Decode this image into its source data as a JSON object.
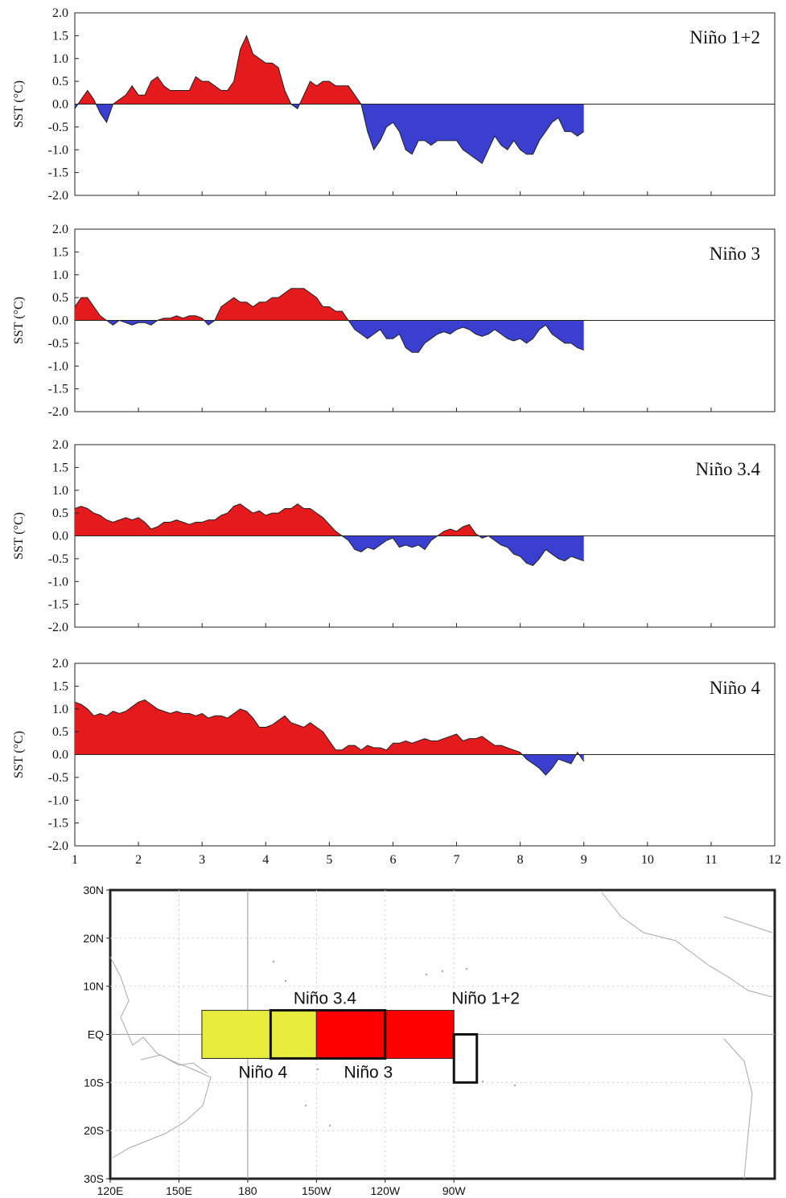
{
  "chart_data": [
    {
      "type": "area",
      "title": "Niño 1+2",
      "ylabel": "SST (°C)",
      "xlim": [
        1,
        12
      ],
      "ylim": [
        -2.0,
        2.0
      ],
      "yticks": [
        "2.0",
        "1.5",
        "1.0",
        "0.5",
        "0.0",
        "-0.5",
        "-1.0",
        "-1.5",
        "-2.0"
      ],
      "positive_color": "#e41a1c",
      "negative_color": "#3a3fd0",
      "x": [
        1.0,
        1.1,
        1.2,
        1.3,
        1.4,
        1.5,
        1.6,
        1.7,
        1.8,
        1.9,
        2.0,
        2.1,
        2.2,
        2.3,
        2.4,
        2.5,
        2.6,
        2.7,
        2.8,
        2.9,
        3.0,
        3.1,
        3.2,
        3.3,
        3.4,
        3.5,
        3.6,
        3.7,
        3.8,
        3.9,
        4.0,
        4.1,
        4.2,
        4.3,
        4.4,
        4.5,
        4.6,
        4.7,
        4.8,
        4.9,
        5.0,
        5.1,
        5.2,
        5.3,
        5.4,
        5.5,
        5.6,
        5.7,
        5.8,
        5.9,
        6.0,
        6.1,
        6.2,
        6.3,
        6.4,
        6.5,
        6.6,
        6.7,
        6.8,
        6.9,
        7.0,
        7.1,
        7.2,
        7.3,
        7.4,
        7.5,
        7.6,
        7.7,
        7.8,
        7.9,
        8.0,
        8.1,
        8.2,
        8.3,
        8.4,
        8.5,
        8.6,
        8.7,
        8.8,
        8.9,
        9.0
      ],
      "values": [
        -0.1,
        0.1,
        0.3,
        0.1,
        -0.2,
        -0.4,
        0.0,
        0.1,
        0.2,
        0.4,
        0.2,
        0.2,
        0.5,
        0.6,
        0.4,
        0.3,
        0.3,
        0.3,
        0.3,
        0.6,
        0.5,
        0.5,
        0.4,
        0.3,
        0.3,
        0.5,
        1.2,
        1.5,
        1.1,
        1.0,
        0.9,
        0.9,
        0.8,
        0.3,
        0.0,
        -0.1,
        0.2,
        0.5,
        0.4,
        0.5,
        0.5,
        0.4,
        0.4,
        0.4,
        0.2,
        0.0,
        -0.6,
        -1.0,
        -0.8,
        -0.5,
        -0.4,
        -0.6,
        -1.0,
        -1.1,
        -0.8,
        -0.8,
        -0.9,
        -0.8,
        -0.8,
        -0.8,
        -0.8,
        -1.0,
        -1.1,
        -1.2,
        -1.3,
        -1.0,
        -0.7,
        -0.9,
        -1.0,
        -0.8,
        -1.0,
        -1.1,
        -1.1,
        -0.8,
        -0.6,
        -0.4,
        -0.3,
        -0.6,
        -0.6,
        -0.7,
        -0.6
      ]
    },
    {
      "type": "area",
      "title": "Niño 3",
      "ylabel": "SST (°C)",
      "xlim": [
        1,
        12
      ],
      "ylim": [
        -2.0,
        2.0
      ],
      "yticks": [
        "2.0",
        "1.5",
        "1.0",
        "0.5",
        "0.0",
        "-0.5",
        "-1.0",
        "-1.5",
        "-2.0"
      ],
      "positive_color": "#e41a1c",
      "negative_color": "#3a3fd0",
      "x": [
        1.0,
        1.1,
        1.2,
        1.3,
        1.4,
        1.5,
        1.6,
        1.7,
        1.8,
        1.9,
        2.0,
        2.1,
        2.2,
        2.3,
        2.4,
        2.5,
        2.6,
        2.7,
        2.8,
        2.9,
        3.0,
        3.1,
        3.2,
        3.3,
        3.4,
        3.5,
        3.6,
        3.7,
        3.8,
        3.9,
        4.0,
        4.1,
        4.2,
        4.3,
        4.4,
        4.5,
        4.6,
        4.7,
        4.8,
        4.9,
        5.0,
        5.1,
        5.2,
        5.3,
        5.4,
        5.5,
        5.6,
        5.7,
        5.8,
        5.9,
        6.0,
        6.1,
        6.2,
        6.3,
        6.4,
        6.5,
        6.6,
        6.7,
        6.8,
        6.9,
        7.0,
        7.1,
        7.2,
        7.3,
        7.4,
        7.5,
        7.6,
        7.7,
        7.8,
        7.9,
        8.0,
        8.1,
        8.2,
        8.3,
        8.4,
        8.5,
        8.6,
        8.7,
        8.8,
        8.9,
        9.0
      ],
      "values": [
        0.3,
        0.5,
        0.5,
        0.3,
        0.1,
        0.0,
        -0.1,
        0.0,
        -0.05,
        -0.1,
        -0.05,
        -0.05,
        -0.1,
        0.0,
        0.05,
        0.05,
        0.1,
        0.05,
        0.1,
        0.1,
        0.05,
        -0.1,
        0.0,
        0.3,
        0.4,
        0.5,
        0.4,
        0.4,
        0.3,
        0.4,
        0.4,
        0.5,
        0.5,
        0.6,
        0.7,
        0.7,
        0.7,
        0.6,
        0.5,
        0.3,
        0.3,
        0.2,
        0.2,
        0.0,
        -0.2,
        -0.3,
        -0.4,
        -0.3,
        -0.2,
        -0.4,
        -0.4,
        -0.3,
        -0.6,
        -0.7,
        -0.7,
        -0.5,
        -0.4,
        -0.3,
        -0.25,
        -0.3,
        -0.2,
        -0.15,
        -0.2,
        -0.3,
        -0.35,
        -0.3,
        -0.2,
        -0.3,
        -0.4,
        -0.45,
        -0.4,
        -0.5,
        -0.4,
        -0.2,
        -0.1,
        -0.3,
        -0.4,
        -0.5,
        -0.5,
        -0.6,
        -0.65
      ]
    },
    {
      "type": "area",
      "title": "Niño 3.4",
      "ylabel": "SST (°C)",
      "xlim": [
        1,
        12
      ],
      "ylim": [
        -2.0,
        2.0
      ],
      "yticks": [
        "2.0",
        "1.5",
        "1.0",
        "0.5",
        "0.0",
        "-0.5",
        "-1.0",
        "-1.5",
        "-2.0"
      ],
      "positive_color": "#e41a1c",
      "negative_color": "#3a3fd0",
      "x": [
        1.0,
        1.1,
        1.2,
        1.3,
        1.4,
        1.5,
        1.6,
        1.7,
        1.8,
        1.9,
        2.0,
        2.1,
        2.2,
        2.3,
        2.4,
        2.5,
        2.6,
        2.7,
        2.8,
        2.9,
        3.0,
        3.1,
        3.2,
        3.3,
        3.4,
        3.5,
        3.6,
        3.7,
        3.8,
        3.9,
        4.0,
        4.1,
        4.2,
        4.3,
        4.4,
        4.5,
        4.6,
        4.7,
        4.8,
        4.9,
        5.0,
        5.1,
        5.2,
        5.3,
        5.4,
        5.5,
        5.6,
        5.7,
        5.8,
        5.9,
        6.0,
        6.1,
        6.2,
        6.3,
        6.4,
        6.5,
        6.6,
        6.7,
        6.8,
        6.9,
        7.0,
        7.1,
        7.2,
        7.3,
        7.4,
        7.5,
        7.6,
        7.7,
        7.8,
        7.9,
        8.0,
        8.1,
        8.2,
        8.3,
        8.4,
        8.5,
        8.6,
        8.7,
        8.8,
        8.9,
        9.0
      ],
      "values": [
        0.6,
        0.65,
        0.6,
        0.5,
        0.45,
        0.35,
        0.3,
        0.35,
        0.4,
        0.35,
        0.4,
        0.3,
        0.15,
        0.2,
        0.3,
        0.3,
        0.35,
        0.3,
        0.25,
        0.3,
        0.3,
        0.35,
        0.35,
        0.45,
        0.5,
        0.65,
        0.7,
        0.6,
        0.5,
        0.55,
        0.45,
        0.5,
        0.5,
        0.6,
        0.6,
        0.7,
        0.6,
        0.6,
        0.5,
        0.4,
        0.25,
        0.1,
        0.0,
        -0.1,
        -0.3,
        -0.35,
        -0.25,
        -0.3,
        -0.2,
        -0.1,
        -0.05,
        -0.25,
        -0.2,
        -0.25,
        -0.2,
        -0.3,
        -0.1,
        0.0,
        0.1,
        0.15,
        0.1,
        0.2,
        0.25,
        0.05,
        -0.05,
        0.0,
        -0.1,
        -0.2,
        -0.25,
        -0.4,
        -0.45,
        -0.6,
        -0.65,
        -0.5,
        -0.3,
        -0.4,
        -0.5,
        -0.55,
        -0.45,
        -0.5,
        -0.55
      ]
    },
    {
      "type": "area",
      "title": "Niño 4",
      "ylabel": "SST (°C)",
      "xlim": [
        1,
        12
      ],
      "ylim": [
        -2.0,
        2.0
      ],
      "yticks": [
        "2.0",
        "1.5",
        "1.0",
        "0.5",
        "0.0",
        "-0.5",
        "-1.0",
        "-1.5",
        "-2.0"
      ],
      "xticks": [
        "1",
        "2",
        "3",
        "4",
        "5",
        "6",
        "7",
        "8",
        "9",
        "10",
        "11",
        "12"
      ],
      "positive_color": "#e41a1c",
      "negative_color": "#3a3fd0",
      "x": [
        1.0,
        1.1,
        1.2,
        1.3,
        1.4,
        1.5,
        1.6,
        1.7,
        1.8,
        1.9,
        2.0,
        2.1,
        2.2,
        2.3,
        2.4,
        2.5,
        2.6,
        2.7,
        2.8,
        2.9,
        3.0,
        3.1,
        3.2,
        3.3,
        3.4,
        3.5,
        3.6,
        3.7,
        3.8,
        3.9,
        4.0,
        4.1,
        4.2,
        4.3,
        4.4,
        4.5,
        4.6,
        4.7,
        4.8,
        4.9,
        5.0,
        5.1,
        5.2,
        5.3,
        5.4,
        5.5,
        5.6,
        5.7,
        5.8,
        5.9,
        6.0,
        6.1,
        6.2,
        6.3,
        6.4,
        6.5,
        6.6,
        6.7,
        6.8,
        6.9,
        7.0,
        7.1,
        7.2,
        7.3,
        7.4,
        7.5,
        7.6,
        7.7,
        7.8,
        7.9,
        8.0,
        8.1,
        8.2,
        8.3,
        8.4,
        8.5,
        8.6,
        8.7,
        8.8,
        8.9,
        9.0
      ],
      "values": [
        1.15,
        1.1,
        1.0,
        0.85,
        0.9,
        0.85,
        0.95,
        0.9,
        0.95,
        1.05,
        1.15,
        1.2,
        1.1,
        1.0,
        0.95,
        0.9,
        0.95,
        0.9,
        0.9,
        0.85,
        0.9,
        0.8,
        0.85,
        0.85,
        0.8,
        0.9,
        1.0,
        0.95,
        0.8,
        0.6,
        0.6,
        0.65,
        0.75,
        0.85,
        0.7,
        0.65,
        0.6,
        0.7,
        0.6,
        0.5,
        0.3,
        0.1,
        0.1,
        0.2,
        0.2,
        0.1,
        0.2,
        0.15,
        0.15,
        0.1,
        0.25,
        0.25,
        0.3,
        0.25,
        0.3,
        0.35,
        0.3,
        0.3,
        0.35,
        0.4,
        0.45,
        0.3,
        0.35,
        0.35,
        0.4,
        0.3,
        0.2,
        0.2,
        0.15,
        0.1,
        0.05,
        -0.1,
        -0.2,
        -0.3,
        -0.45,
        -0.3,
        -0.1,
        -0.15,
        -0.2,
        0.05,
        -0.15
      ]
    }
  ],
  "map": {
    "lon_labels": [
      "120E",
      "150E",
      "180",
      "150W",
      "120W",
      "90W"
    ],
    "lat_labels": [
      "30N",
      "20N",
      "10N",
      "EQ",
      "10S",
      "20S",
      "30S"
    ],
    "regions": [
      {
        "name": "Niño 4",
        "color": "#e8ec3c"
      },
      {
        "name": "Niño 3",
        "color": "#ff0000"
      },
      {
        "name": "Niño 3.4",
        "color": "none"
      },
      {
        "name": "Niño 1+2",
        "color": "#ffffff"
      }
    ]
  }
}
